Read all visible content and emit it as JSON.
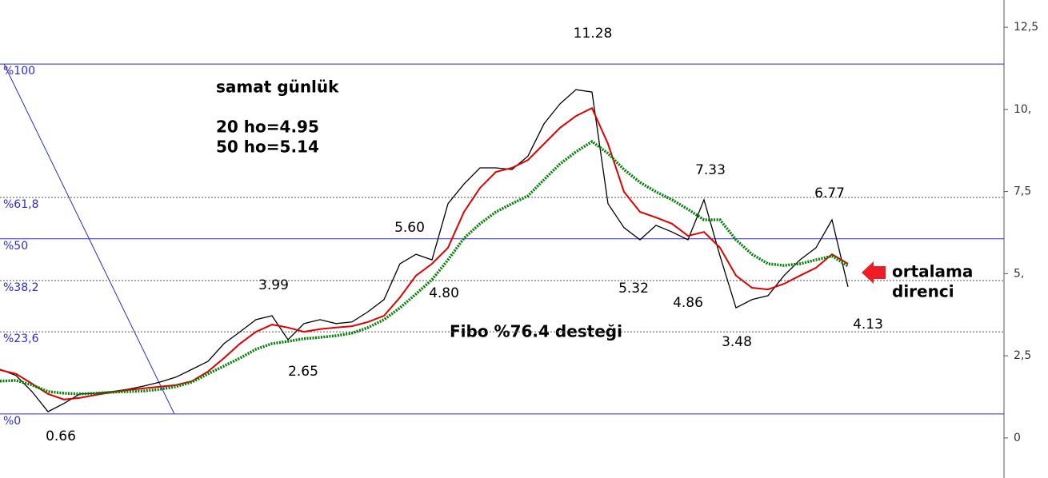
{
  "chart_data": {
    "type": "line",
    "title": "samat günlük",
    "notes": [
      "20 ho=4.95",
      "50 ho=5.14",
      "Fibo %76.4 desteği",
      "ortalama",
      "direnci"
    ],
    "categories": [
      null,
      null,
      null,
      null,
      null,
      null,
      null,
      null,
      null,
      null,
      null,
      null,
      null,
      null,
      null,
      null,
      null,
      null,
      null,
      null,
      null,
      null,
      null,
      null,
      null,
      null,
      null,
      null,
      null,
      null,
      null,
      null,
      null,
      null,
      null,
      null,
      null,
      null,
      null,
      null,
      null,
      null,
      null,
      null,
      null,
      null,
      null,
      null,
      null,
      null,
      null,
      null,
      null,
      null
    ],
    "series": [
      {
        "color": "#000000",
        "values": [
          2.09,
          1.9,
          1.41,
          0.8,
          1.05,
          1.34,
          1.36,
          1.41,
          1.48,
          1.58,
          1.7,
          1.85,
          2.09,
          2.33,
          2.87,
          3.23,
          3.6,
          3.72,
          2.99,
          3.48,
          3.6,
          3.48,
          3.53,
          3.84,
          4.21,
          5.3,
          5.59,
          5.42,
          7.13,
          7.73,
          8.22,
          8.22,
          8.17,
          8.58,
          9.56,
          10.17,
          10.6,
          10.53,
          7.13,
          6.4,
          6.03,
          6.47,
          6.27,
          6.03,
          7.25,
          5.54,
          3.96,
          4.21,
          4.33,
          4.94,
          5.42,
          5.79,
          6.64,
          4.6
        ]
      },
      {
        "color": "#e00000",
        "values": [
          2.07,
          1.95,
          1.65,
          1.34,
          1.17,
          1.22,
          1.31,
          1.39,
          1.46,
          1.51,
          1.56,
          1.61,
          1.73,
          2.02,
          2.43,
          2.87,
          3.23,
          3.45,
          3.36,
          3.23,
          3.31,
          3.36,
          3.4,
          3.53,
          3.72,
          4.28,
          4.94,
          5.3,
          5.79,
          6.88,
          7.61,
          8.1,
          8.22,
          8.46,
          8.95,
          9.44,
          9.8,
          10.04,
          8.95,
          7.49,
          6.88,
          6.71,
          6.52,
          6.15,
          6.27,
          5.79,
          4.94,
          4.57,
          4.52,
          4.69,
          4.94,
          5.18,
          5.59,
          5.3
        ]
      },
      {
        "color": "#008000",
        "values": [
          1.73,
          1.75,
          1.61,
          1.41,
          1.36,
          1.34,
          1.36,
          1.39,
          1.41,
          1.43,
          1.48,
          1.56,
          1.7,
          1.95,
          2.19,
          2.43,
          2.7,
          2.87,
          2.94,
          3.02,
          3.06,
          3.11,
          3.19,
          3.36,
          3.6,
          3.96,
          4.38,
          4.82,
          5.42,
          6.08,
          6.52,
          6.88,
          7.13,
          7.37,
          7.86,
          8.34,
          8.71,
          9.02,
          8.66,
          8.17,
          7.78,
          7.49,
          7.25,
          6.96,
          6.64,
          6.64,
          6.03,
          5.59,
          5.3,
          5.25,
          5.3,
          5.42,
          5.54,
          5.23
        ]
      }
    ],
    "fib_levels": [
      {
        "label": "%100",
        "value": 11.38,
        "dashed": false
      },
      {
        "label": "%61,8",
        "value": 7.32,
        "dashed": true
      },
      {
        "label": "%50",
        "value": 6.06,
        "dashed": false
      },
      {
        "label": "%38,2",
        "value": 4.79,
        "dashed": true
      },
      {
        "label": "%23,6",
        "value": 3.23,
        "dashed": true
      },
      {
        "label": "%0",
        "value": 0.73,
        "dashed": false
      }
    ],
    "fib_color": "#2b2bd6",
    "annotations": [
      "11.28",
      "3.99",
      "2.65",
      "0.66",
      "5.60",
      "4.80",
      "5.32",
      "7.33",
      "4.86",
      "6.77",
      "3.48",
      "4.13"
    ],
    "ylim": [
      -1.22,
      13.33
    ],
    "yticks": [
      {
        "value": 12.5,
        "label": "12,5"
      },
      {
        "value": 10,
        "label": "10,"
      },
      {
        "value": 7.5,
        "label": "7,5"
      },
      {
        "value": 5,
        "label": "5,"
      },
      {
        "value": 2.5,
        "label": "2,5"
      },
      0
    ]
  }
}
